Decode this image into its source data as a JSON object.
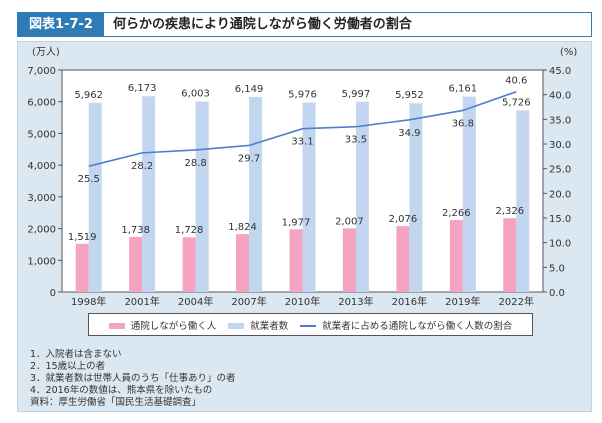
{
  "header": {
    "figure_number": "図表1-7-2",
    "title": "何らかの疾患により通院しながら働く労働者の割合"
  },
  "chart_data": {
    "type": "bar+line",
    "categories": [
      "1998年",
      "2001年",
      "2004年",
      "2007年",
      "2010年",
      "2013年",
      "2016年",
      "2019年",
      "2022年"
    ],
    "series": [
      {
        "name": "通院しながら働く人",
        "type": "bar",
        "axis": "left",
        "color": "#f5a3c3",
        "values": [
          1519,
          1738,
          1728,
          1824,
          1977,
          2007,
          2076,
          2266,
          2326
        ]
      },
      {
        "name": "就業者数",
        "type": "bar",
        "axis": "left",
        "color": "#c3d6f0",
        "values": [
          5962,
          6173,
          6003,
          6149,
          5976,
          5997,
          5952,
          6161,
          5726
        ]
      },
      {
        "name": "就業者に占める通院しながら働く人数の割合",
        "type": "line",
        "axis": "right",
        "color": "#4f7fc9",
        "values": [
          25.5,
          28.2,
          28.8,
          29.7,
          33.1,
          33.5,
          34.9,
          36.8,
          40.6
        ]
      }
    ],
    "left_axis": {
      "unit": "(万人)",
      "range": [
        0,
        7000
      ],
      "ticks": [
        0,
        1000,
        2000,
        3000,
        4000,
        5000,
        6000,
        7000
      ],
      "tick_labels": [
        "0",
        "1,000",
        "2,000",
        "3,000",
        "4,000",
        "5,000",
        "6,000",
        "7,000"
      ]
    },
    "right_axis": {
      "unit": "(%)",
      "range": [
        0,
        45
      ],
      "ticks": [
        0,
        5,
        10,
        15,
        20,
        25,
        30,
        35,
        40,
        45
      ],
      "tick_labels": [
        "0.0",
        "5.0",
        "10.0",
        "15.0",
        "20.0",
        "25.0",
        "30.0",
        "35.0",
        "40.0",
        "45.0"
      ]
    },
    "grid": false,
    "legend": "bottom"
  },
  "notes": [
    "1．入院者は含まない",
    "2．15歳以上の者",
    "3．就業者数は世帯人員のうち「仕事あり」の者",
    "4．2016年の数値は、熊本県を除いたもの",
    "資料：厚生労働省「国民生活基礎調査」"
  ]
}
